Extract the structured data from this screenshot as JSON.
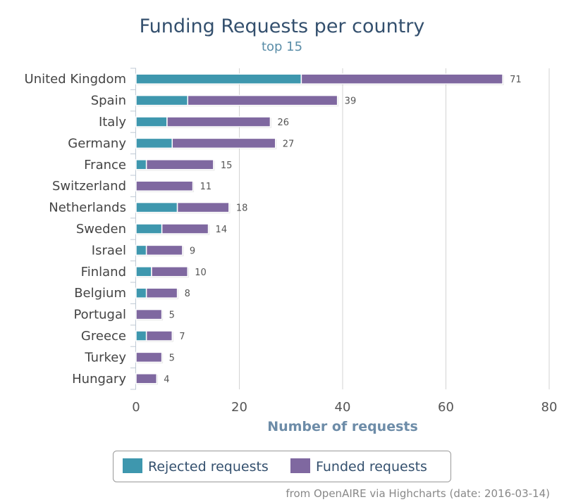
{
  "chart_data": {
    "type": "bar",
    "orientation": "horizontal",
    "stacking": "normal",
    "title": "Funding Requests per country",
    "subtitle": "top 15",
    "xlabel": "",
    "ylabel": "Number of requests",
    "ylim": [
      0,
      80
    ],
    "ticks": [
      0,
      20,
      40,
      60,
      80
    ],
    "grid": true,
    "legend_placement": "bottom-center",
    "categories": [
      "United Kingdom",
      "Spain",
      "Italy",
      "Germany",
      "France",
      "Switzerland",
      "Netherlands",
      "Sweden",
      "Israel",
      "Finland",
      "Belgium",
      "Portugal",
      "Greece",
      "Turkey",
      "Hungary"
    ],
    "series": [
      {
        "name": "Rejected requests",
        "color": "#3e97ae",
        "values": [
          32,
          10,
          6,
          7,
          2,
          0,
          8,
          5,
          2,
          3,
          2,
          0,
          2,
          0,
          0
        ]
      },
      {
        "name": "Funded requests",
        "color": "#7f68a0",
        "values": [
          39,
          29,
          20,
          20,
          13,
          11,
          10,
          9,
          7,
          7,
          6,
          5,
          5,
          5,
          4
        ]
      }
    ],
    "totals": [
      71,
      39,
      26,
      27,
      15,
      11,
      18,
      14,
      9,
      10,
      8,
      5,
      7,
      5,
      4
    ],
    "credits": "from OpenAIRE via Highcharts (date: 2016-03-14)"
  }
}
